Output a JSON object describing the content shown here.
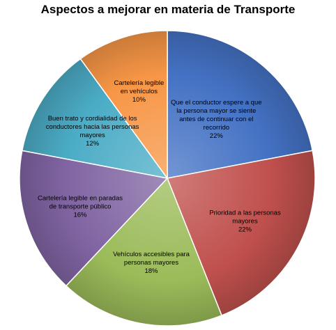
{
  "chart_data": {
    "type": "pie",
    "title": "Aspectos a mejorar en materia de Transporte",
    "slices": [
      {
        "label": "Que el conductor espere a que la persona mayor se siente antes de continuar con el recorrido",
        "value": 22,
        "value_label": "22%",
        "color": "#4472C4",
        "label_lines": [
          "Que el conductor espere a que",
          "la persona mayor se siente",
          "antes de continuar con el",
          "recorrido",
          "22%"
        ]
      },
      {
        "label": "Prioridad a las personas mayores",
        "value": 22,
        "value_label": "22%",
        "color": "#C0504D",
        "label_lines": [
          "Prioridad a las personas",
          "mayores",
          "22%"
        ]
      },
      {
        "label": "Vehículos accesibles para personas mayores",
        "value": 18,
        "value_label": "18%",
        "color": "#9BBB59",
        "label_lines": [
          "Vehículos accesibles para",
          "personas mayores",
          "18%"
        ]
      },
      {
        "label": "Cartelería legible en paradas de transporte público",
        "value": 16,
        "value_label": "16%",
        "color": "#8064A2",
        "label_lines": [
          "Cartelería legible en paradas",
          "de transporte público",
          "16%"
        ]
      },
      {
        "label": "Buen trato y cordialidad de los conductores hacia las personas mayores",
        "value": 12,
        "value_label": "12%",
        "color": "#4BACC6",
        "label_lines": [
          "Buen trato y cordialidad de los",
          "conductores hacia las personas",
          "mayores",
          "12%"
        ]
      },
      {
        "label": "Cartelería legible en vehículos",
        "value": 10,
        "value_label": "10%",
        "color": "#F79646",
        "label_lines": [
          "Cartelería legible",
          "en vehículos",
          "10%"
        ]
      }
    ]
  }
}
